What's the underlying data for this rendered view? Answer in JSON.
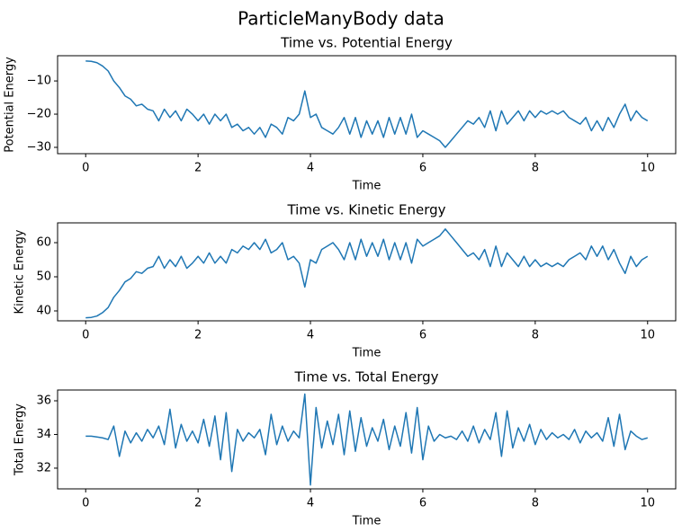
{
  "title": "ParticleManyBody data",
  "chart_data": [
    {
      "type": "line",
      "title": "Time vs. Potential Energy",
      "x_label": "Time",
      "y_label": "Potential Energy",
      "color": "#1f77b4",
      "x": [
        0,
        0.1,
        0.2,
        0.3,
        0.4,
        0.5,
        0.6,
        0.7,
        0.8,
        0.9,
        1,
        1.1,
        1.2,
        1.3,
        1.4,
        1.5,
        1.6,
        1.7,
        1.8,
        1.9,
        2,
        2.1,
        2.2,
        2.3,
        2.4,
        2.5,
        2.6,
        2.7,
        2.8,
        2.9,
        3,
        3.1,
        3.2,
        3.3,
        3.4,
        3.5,
        3.6,
        3.7,
        3.8,
        3.9,
        4,
        4.1,
        4.2,
        4.3,
        4.4,
        4.5,
        4.6,
        4.7,
        4.8,
        4.9,
        5,
        5.1,
        5.2,
        5.3,
        5.4,
        5.5,
        5.6,
        5.7,
        5.8,
        5.9,
        6,
        6.1,
        6.2,
        6.3,
        6.4,
        6.5,
        6.6,
        6.7,
        6.8,
        6.9,
        7,
        7.1,
        7.2,
        7.3,
        7.4,
        7.5,
        7.6,
        7.7,
        7.8,
        7.9,
        8,
        8.1,
        8.2,
        8.3,
        8.4,
        8.5,
        8.6,
        8.7,
        8.8,
        8.9,
        9,
        9.1,
        9.2,
        9.3,
        9.4,
        9.5,
        9.6,
        9.7,
        9.8,
        9.9,
        10
      ],
      "values": [
        -4,
        -4.1,
        -4.5,
        -5.5,
        -7,
        -10,
        -12,
        -14.5,
        -15.5,
        -17.5,
        -17,
        -18.5,
        -19,
        -22,
        -18.5,
        -21,
        -19,
        -22,
        -18.5,
        -20,
        -22,
        -20,
        -23,
        -20,
        -22,
        -20,
        -24,
        -23,
        -25,
        -24,
        -26,
        -24,
        -27,
        -23,
        -24,
        -26,
        -21,
        -22,
        -20,
        -13,
        -21,
        -20,
        -24,
        -25,
        -26,
        -24,
        -21,
        -26,
        -21,
        -27,
        -22,
        -26,
        -22,
        -27,
        -21,
        -26,
        -21,
        -26,
        -20,
        -27,
        -25,
        -26,
        -27,
        -28,
        -30,
        -28,
        -26,
        -24,
        -22,
        -23,
        -21,
        -24,
        -19,
        -25,
        -19,
        -23,
        -21,
        -19,
        -22,
        -19,
        -21,
        -19,
        -20,
        -19,
        -20,
        -19,
        -21,
        -22,
        -23,
        -21,
        -25,
        -22,
        -25,
        -21,
        -24,
        -20,
        -17,
        -22,
        -19,
        -21,
        -22
      ],
      "xlim": [
        -0.5,
        10.5
      ],
      "xticks": [
        0,
        2,
        4,
        6,
        8,
        10
      ],
      "ylim": [
        -31.9,
        -2.4
      ],
      "yticks": [
        {
          "value": -30,
          "label": "−30"
        },
        {
          "value": -20,
          "label": "−20"
        },
        {
          "value": -10,
          "label": "−10"
        }
      ]
    },
    {
      "type": "line",
      "title": "Time vs. Kinetic Energy",
      "x_label": "Time",
      "y_label": "Kinetic Energy",
      "color": "#1f77b4",
      "x": [
        0,
        0.1,
        0.2,
        0.3,
        0.4,
        0.5,
        0.6,
        0.7,
        0.8,
        0.9,
        1,
        1.1,
        1.2,
        1.3,
        1.4,
        1.5,
        1.6,
        1.7,
        1.8,
        1.9,
        2,
        2.1,
        2.2,
        2.3,
        2.4,
        2.5,
        2.6,
        2.7,
        2.8,
        2.9,
        3,
        3.1,
        3.2,
        3.3,
        3.4,
        3.5,
        3.6,
        3.7,
        3.8,
        3.9,
        4,
        4.1,
        4.2,
        4.3,
        4.4,
        4.5,
        4.6,
        4.7,
        4.8,
        4.9,
        5,
        5.1,
        5.2,
        5.3,
        5.4,
        5.5,
        5.6,
        5.7,
        5.8,
        5.9,
        6,
        6.1,
        6.2,
        6.3,
        6.4,
        6.5,
        6.6,
        6.7,
        6.8,
        6.9,
        7,
        7.1,
        7.2,
        7.3,
        7.4,
        7.5,
        7.6,
        7.7,
        7.8,
        7.9,
        8,
        8.1,
        8.2,
        8.3,
        8.4,
        8.5,
        8.6,
        8.7,
        8.8,
        8.9,
        9,
        9.1,
        9.2,
        9.3,
        9.4,
        9.5,
        9.6,
        9.7,
        9.8,
        9.9,
        10
      ],
      "values": [
        38,
        38.1,
        38.5,
        39.5,
        41,
        44,
        46,
        48.5,
        49.5,
        51.5,
        51,
        52.5,
        53,
        56,
        52.5,
        55,
        53,
        56,
        52.5,
        54,
        56,
        54,
        57,
        54,
        56,
        54,
        58,
        57,
        59,
        58,
        60,
        58,
        61,
        57,
        58,
        60,
        55,
        56,
        54,
        47,
        55,
        54,
        58,
        59,
        60,
        58,
        55,
        60,
        55,
        61,
        56,
        60,
        56,
        61,
        55,
        60,
        55,
        60,
        54,
        61,
        59,
        60,
        61,
        62,
        64,
        62,
        60,
        58,
        56,
        57,
        55,
        58,
        53,
        59,
        53,
        57,
        55,
        53,
        56,
        53,
        55,
        53,
        54,
        53,
        54,
        53,
        55,
        56,
        57,
        55,
        59,
        56,
        59,
        55,
        58,
        54,
        51,
        56,
        53,
        55,
        56
      ],
      "xlim": [
        -0.5,
        10.5
      ],
      "xticks": [
        0,
        2,
        4,
        6,
        8,
        10
      ],
      "ylim": [
        37.1,
        65.8
      ],
      "yticks": [
        40,
        50,
        60
      ]
    },
    {
      "type": "line",
      "title": "Time vs. Total Energy",
      "x_label": "Time",
      "y_label": "Total Energy",
      "color": "#1f77b4",
      "x": [
        0,
        0.1,
        0.2,
        0.3,
        0.4,
        0.5,
        0.6,
        0.7,
        0.8,
        0.9,
        1,
        1.1,
        1.2,
        1.3,
        1.4,
        1.5,
        1.6,
        1.7,
        1.8,
        1.9,
        2,
        2.1,
        2.2,
        2.3,
        2.4,
        2.5,
        2.6,
        2.7,
        2.8,
        2.9,
        3,
        3.1,
        3.2,
        3.3,
        3.4,
        3.5,
        3.6,
        3.7,
        3.8,
        3.9,
        4,
        4.1,
        4.2,
        4.3,
        4.4,
        4.5,
        4.6,
        4.7,
        4.8,
        4.9,
        5,
        5.1,
        5.2,
        5.3,
        5.4,
        5.5,
        5.6,
        5.7,
        5.8,
        5.9,
        6,
        6.1,
        6.2,
        6.3,
        6.4,
        6.5,
        6.6,
        6.7,
        6.8,
        6.9,
        7,
        7.1,
        7.2,
        7.3,
        7.4,
        7.5,
        7.6,
        7.7,
        7.8,
        7.9,
        8,
        8.1,
        8.2,
        8.3,
        8.4,
        8.5,
        8.6,
        8.7,
        8.8,
        8.9,
        9,
        9.1,
        9.2,
        9.3,
        9.4,
        9.5,
        9.6,
        9.7,
        9.8,
        9.9,
        10
      ],
      "values": [
        33.9,
        33.9,
        33.85,
        33.8,
        33.7,
        34.5,
        32.7,
        34.2,
        33.5,
        34.1,
        33.6,
        34.3,
        33.8,
        34.5,
        33.4,
        35.5,
        33.2,
        34.6,
        33.6,
        34.2,
        33.5,
        34.9,
        33.3,
        35.1,
        32.5,
        35.3,
        31.8,
        34.3,
        33.6,
        34.1,
        33.8,
        34.3,
        32.8,
        35.2,
        33.4,
        34.5,
        33.6,
        34.2,
        33.8,
        36.4,
        31.0,
        35.6,
        33.2,
        34.8,
        33.4,
        35.2,
        32.8,
        35.4,
        33.0,
        35.0,
        33.3,
        34.4,
        33.6,
        34.9,
        33.1,
        34.5,
        33.3,
        35.3,
        32.9,
        35.6,
        32.5,
        34.5,
        33.6,
        34.0,
        33.8,
        33.9,
        33.7,
        34.2,
        33.6,
        34.5,
        33.5,
        34.3,
        33.7,
        35.3,
        32.7,
        35.4,
        33.2,
        34.4,
        33.6,
        34.6,
        33.4,
        34.3,
        33.7,
        34.1,
        33.8,
        34.0,
        33.7,
        34.3,
        33.5,
        34.2,
        33.8,
        34.1,
        33.6,
        35.0,
        33.3,
        35.2,
        33.1,
        34.2,
        33.9,
        33.7,
        33.8
      ],
      "xlim": [
        -0.5,
        10.5
      ],
      "xticks": [
        0,
        2,
        4,
        6,
        8,
        10
      ],
      "ylim": [
        30.77,
        36.64
      ],
      "yticks": [
        32,
        34,
        36
      ]
    }
  ]
}
